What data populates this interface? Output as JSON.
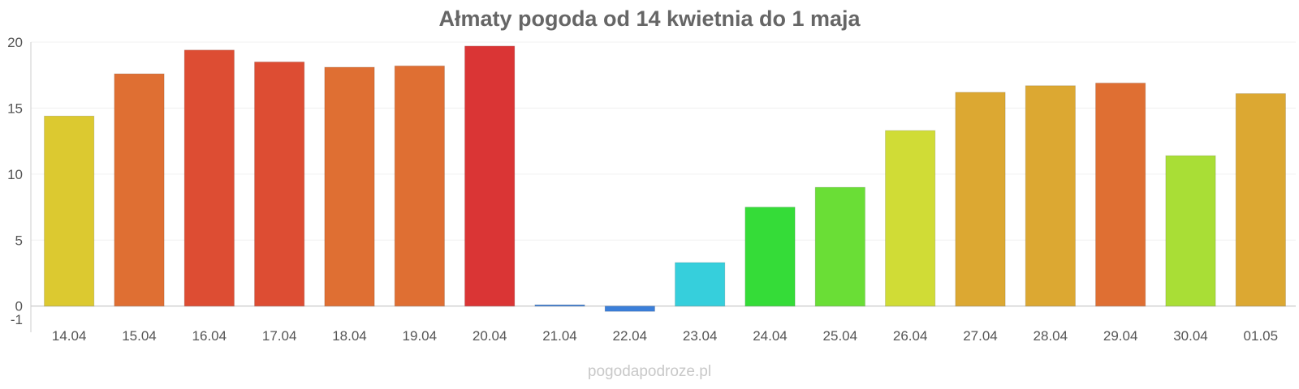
{
  "chart_data": {
    "type": "bar",
    "title": "Ałmaty pogoda od 14 kwietnia do 1 maja",
    "xlabel": "",
    "ylabel": "",
    "ylim": [
      -1,
      20
    ],
    "yticks": [
      20,
      15,
      10,
      5,
      0,
      -1
    ],
    "grid": true,
    "categories": [
      "14.04",
      "15.04",
      "16.04",
      "17.04",
      "18.04",
      "19.04",
      "20.04",
      "21.04",
      "22.04",
      "23.04",
      "24.04",
      "25.04",
      "26.04",
      "27.04",
      "28.04",
      "29.04",
      "30.04",
      "01.05"
    ],
    "values": [
      14.4,
      17.6,
      19.4,
      18.5,
      18.1,
      18.2,
      19.7,
      0.1,
      -0.4,
      3.3,
      7.5,
      9.0,
      13.3,
      16.2,
      16.7,
      16.9,
      11.4,
      16.1
    ],
    "colors": [
      "#dcc930",
      "#df6f33",
      "#dd4d33",
      "#dd4d33",
      "#df6f33",
      "#df6f33",
      "#da3535",
      "#3b7fd9",
      "#3b7fd9",
      "#36cfdc",
      "#35dc38",
      "#6ade36",
      "#d0dc36",
      "#dca832",
      "#dca832",
      "#df6f33",
      "#a9de36",
      "#dca832"
    ]
  },
  "watermark": "pogodapodroze.pl"
}
